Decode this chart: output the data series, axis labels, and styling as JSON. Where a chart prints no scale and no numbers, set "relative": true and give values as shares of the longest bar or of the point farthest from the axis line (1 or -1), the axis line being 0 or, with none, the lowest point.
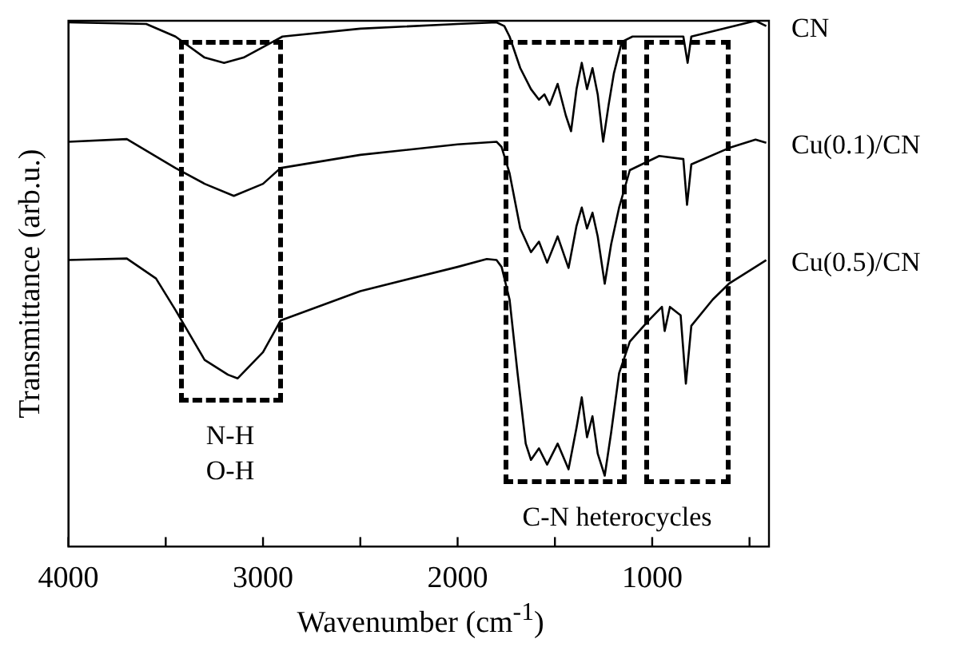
{
  "chart_data": {
    "type": "line",
    "xlabel": "Wavenumber (cm$^{-1}$)",
    "ylabel": "Transmittance (arb.u.)",
    "relative": true,
    "legend": false,
    "grid": false,
    "marker": "none",
    "line_style": "solid",
    "tick_labels": "x",
    "xlim": [
      4000,
      400
    ],
    "xticks": [
      4000,
      {
        "value": 3500,
        "label": null
      },
      3000,
      {
        "value": 2500,
        "label": null
      },
      2000,
      {
        "value": 1500,
        "label": null
      },
      1000,
      {
        "value": 500,
        "label": null
      }
    ],
    "series": [
      {
        "name": "CN",
        "color": "#000000",
        "x": [
          4000,
          3600,
          3450,
          3300,
          3200,
          3100,
          2950,
          2900,
          2500,
          2000,
          1800,
          1760,
          1733,
          1678,
          1623,
          1582,
          1554,
          1527,
          1486,
          1444,
          1417,
          1389,
          1362,
          1335,
          1307,
          1280,
          1252,
          1224,
          1197,
          1156,
          1101,
          840,
          818,
          799,
          469,
          414
        ],
        "values": [
          0.997,
          0.994,
          0.97,
          0.93,
          0.92,
          0.93,
          0.96,
          0.97,
          0.985,
          0.994,
          0.997,
          0.99,
          0.97,
          0.91,
          0.87,
          0.85,
          0.86,
          0.84,
          0.88,
          0.82,
          0.79,
          0.87,
          0.92,
          0.87,
          0.91,
          0.86,
          0.77,
          0.84,
          0.9,
          0.96,
          0.97,
          0.97,
          0.92,
          0.97,
          1.0,
          0.99
        ]
      },
      {
        "name": "Cu(0.1)/CN",
        "color": "#000000",
        "x": [
          4000,
          3700,
          3450,
          3300,
          3150,
          3000,
          2910,
          2500,
          2000,
          1800,
          1774,
          1733,
          1678,
          1623,
          1582,
          1540,
          1486,
          1430,
          1389,
          1362,
          1335,
          1307,
          1280,
          1244,
          1211,
          1170,
          1115,
          964,
          840,
          821,
          799,
          606,
          469,
          414
        ],
        "values": [
          0.77,
          0.775,
          0.72,
          0.69,
          0.667,
          0.69,
          0.72,
          0.745,
          0.765,
          0.77,
          0.76,
          0.71,
          0.605,
          0.56,
          0.58,
          0.54,
          0.59,
          0.53,
          0.61,
          0.645,
          0.605,
          0.635,
          0.59,
          0.5,
          0.575,
          0.645,
          0.716,
          0.743,
          0.737,
          0.65,
          0.727,
          0.758,
          0.774,
          0.768
        ]
      },
      {
        "name": "Cu(0.5)/CN",
        "color": "#000000",
        "x": [
          4000,
          3700,
          3550,
          3450,
          3300,
          3180,
          3130,
          3000,
          2910,
          2500,
          2000,
          1850,
          1800,
          1774,
          1733,
          1692,
          1650,
          1623,
          1582,
          1540,
          1486,
          1430,
          1389,
          1362,
          1335,
          1307,
          1280,
          1244,
          1211,
          1170,
          1115,
          1019,
          950,
          936,
          909,
          854,
          827,
          799,
          689,
          606,
          469,
          414
        ],
        "values": [
          0.545,
          0.548,
          0.51,
          0.45,
          0.355,
          0.327,
          0.32,
          0.37,
          0.43,
          0.486,
          0.532,
          0.547,
          0.545,
          0.532,
          0.47,
          0.33,
          0.196,
          0.165,
          0.187,
          0.156,
          0.196,
          0.147,
          0.226,
          0.284,
          0.208,
          0.248,
          0.177,
          0.135,
          0.217,
          0.33,
          0.39,
          0.43,
          0.456,
          0.41,
          0.456,
          0.44,
          0.31,
          0.42,
          0.47,
          0.5,
          0.532,
          0.545
        ]
      }
    ],
    "annotations": [
      "N-H\nO-H",
      "C-N heterocycles"
    ]
  }
}
